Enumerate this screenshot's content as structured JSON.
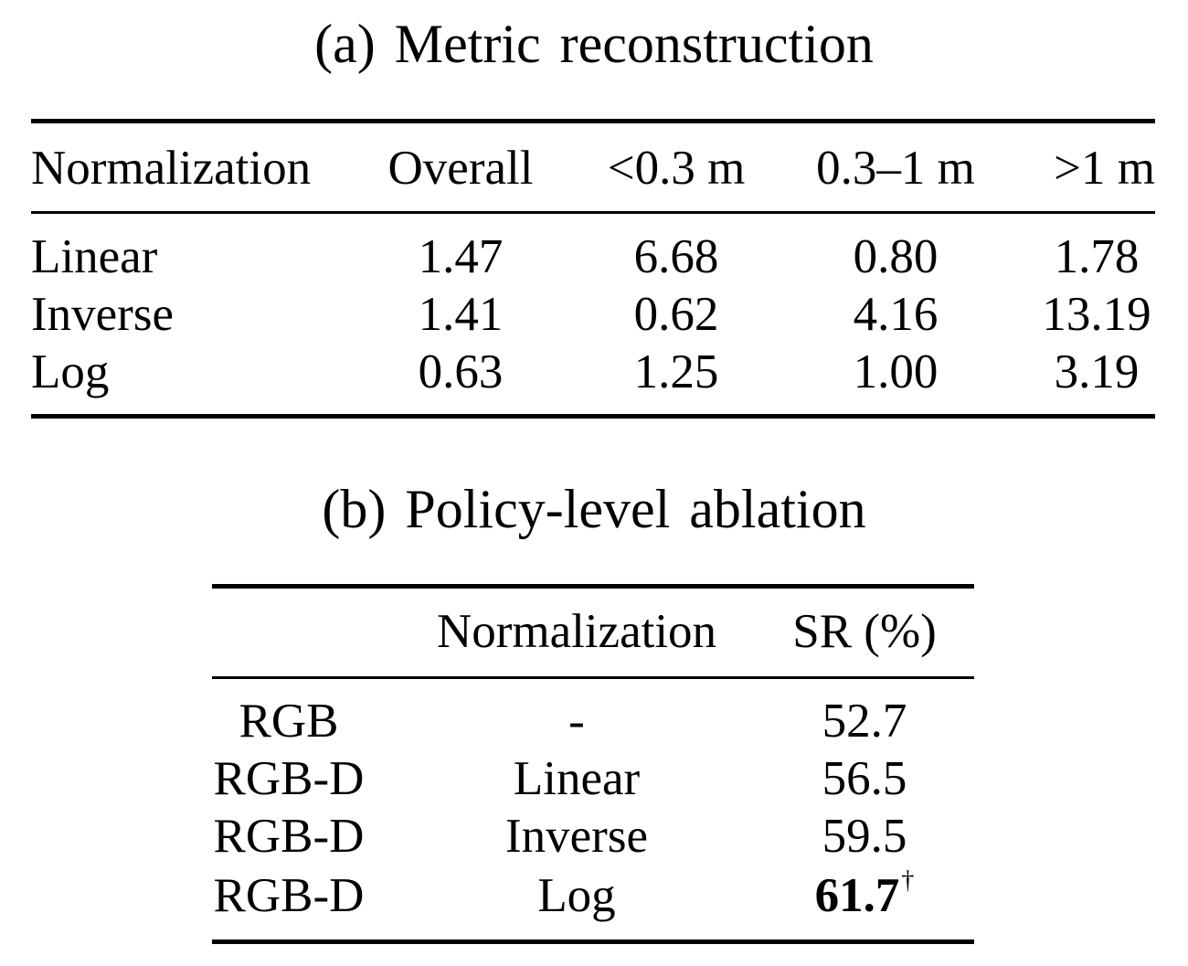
{
  "table_a": {
    "caption": "(a) Metric reconstruction",
    "headers": [
      "Normalization",
      "Overall",
      "<0.3 m",
      "0.3–1 m",
      ">1 m"
    ],
    "rows": [
      [
        "Linear",
        "1.47",
        "6.68",
        "0.80",
        "1.78"
      ],
      [
        "Inverse",
        "1.41",
        "0.62",
        "4.16",
        "13.19"
      ],
      [
        "Log",
        "0.63",
        "1.25",
        "1.00",
        "3.19"
      ]
    ]
  },
  "table_b": {
    "caption": "(b) Policy-level ablation",
    "headers": [
      "",
      "Normalization",
      "SR (%)"
    ],
    "rows": [
      [
        "RGB",
        "-",
        "52.7"
      ],
      [
        "RGB-D",
        "Linear",
        "56.5"
      ],
      [
        "RGB-D",
        "Inverse",
        "59.5"
      ],
      [
        "RGB-D",
        "Log",
        "61.7"
      ]
    ],
    "best_marker": "†"
  }
}
